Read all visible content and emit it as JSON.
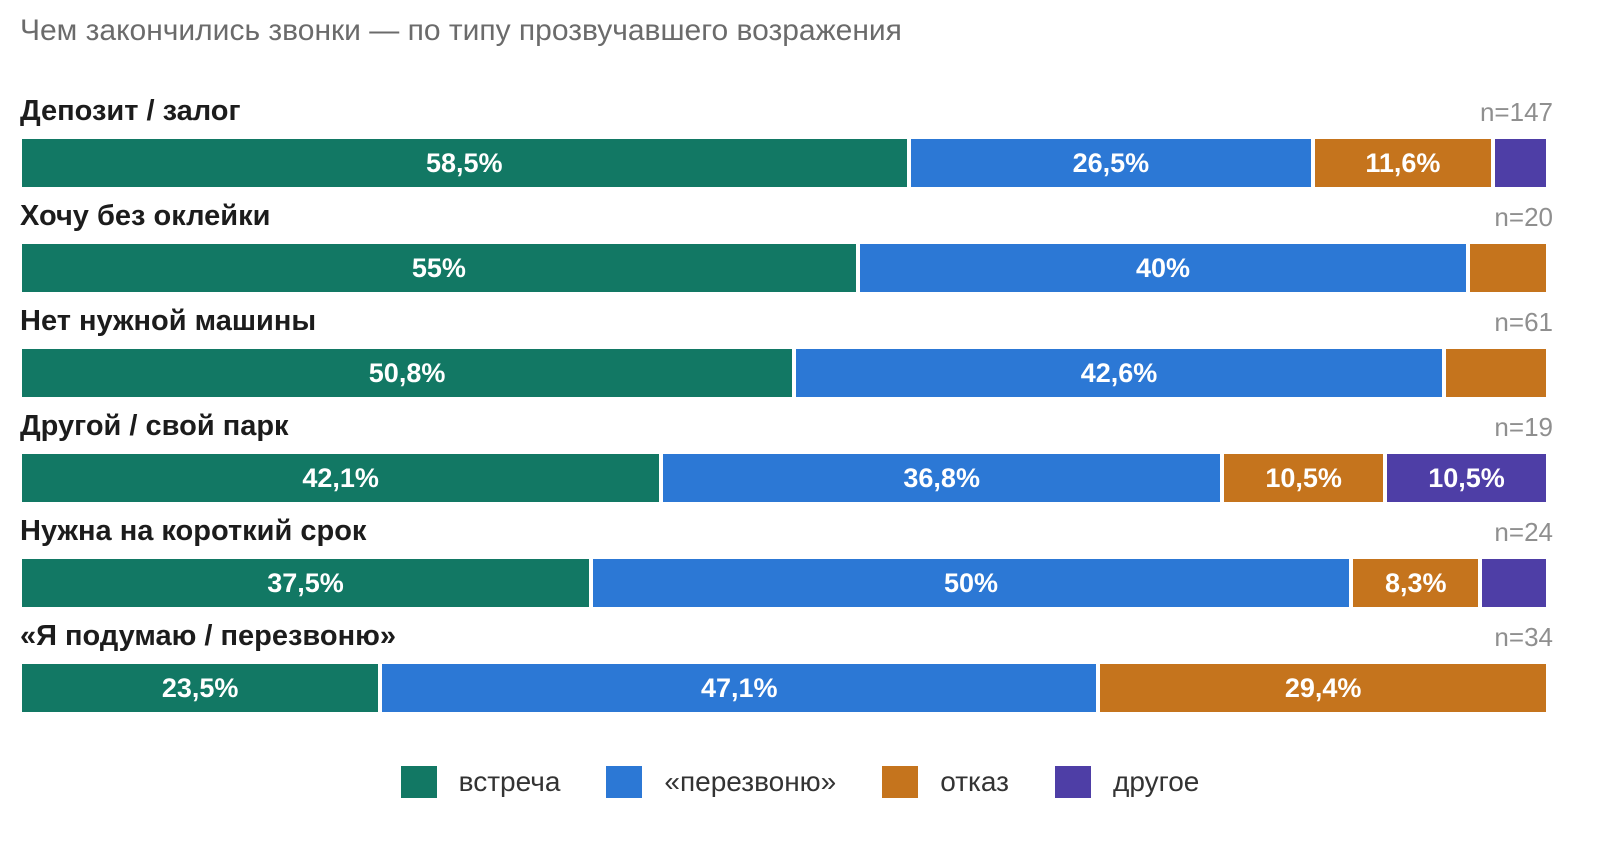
{
  "colors": {
    "встреча": "#127864",
    "перезвоню": "#2c78d5",
    "отказ": "#c5741d",
    "другое": "#4e3ea6"
  },
  "chart_data": {
    "type": "bar",
    "orientation": "horizontal",
    "stacked": true,
    "normalized": true,
    "title": "Чем закончились звонки — по типу прозвучавшего возражения",
    "categories": [
      "Депозит / залог",
      "Хочу без оклейки",
      "Нет нужной машины",
      "Другой / свой парк",
      "Нужна на короткий срок",
      "«Я подумаю / перезвоню»"
    ],
    "n_labels": [
      "n=147",
      "n=20",
      "n=61",
      "n=19",
      "n=24",
      "n=34"
    ],
    "series": [
      {
        "name": "встреча",
        "values": [
          58.5,
          55,
          50.8,
          42.1,
          37.5,
          23.5
        ],
        "labels": [
          "58,5%",
          "55%",
          "50,8%",
          "42,1%",
          "37,5%",
          "23,5%"
        ]
      },
      {
        "name": "«перезвоню»",
        "values": [
          26.5,
          40,
          42.6,
          36.8,
          50,
          47.1
        ],
        "labels": [
          "26,5%",
          "40%",
          "42,6%",
          "36,8%",
          "50%",
          "47,1%"
        ]
      },
      {
        "name": "отказ",
        "values": [
          11.6,
          5,
          6.6,
          10.5,
          8.3,
          29.4
        ],
        "labels": [
          "11,6%",
          "",
          "",
          "10,5%",
          "8,3%",
          "29,4%"
        ]
      },
      {
        "name": "другое",
        "values": [
          3.4,
          0,
          0,
          10.5,
          4.2,
          0
        ],
        "labels": [
          "",
          "",
          "",
          "10,5%",
          "",
          ""
        ]
      }
    ],
    "xlim": [
      0,
      100
    ],
    "legend": {
      "position": "bottom",
      "entries": [
        "встреча",
        "«перезвоню»",
        "отказ",
        "другое"
      ]
    }
  }
}
